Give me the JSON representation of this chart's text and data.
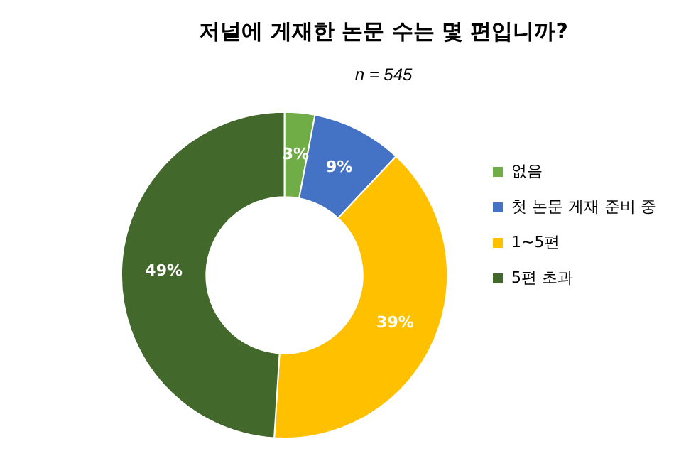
{
  "chart_data": {
    "type": "donut",
    "title": "저널에 게재한 논문 수는 몇 편입니까?",
    "subtitle": "n = 545",
    "categories": [
      "없음",
      "첫 논문 게재 준비 중",
      "1~5편",
      "5편 초과"
    ],
    "values": [
      3,
      9,
      39,
      49
    ],
    "colors": [
      "#70ad47",
      "#4472c4",
      "#ffc000",
      "#43682b"
    ],
    "value_labels": [
      "3%",
      "9%",
      "39%",
      "49%"
    ],
    "legend": "right"
  }
}
